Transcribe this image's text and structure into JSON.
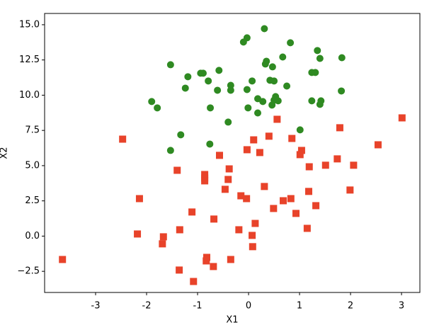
{
  "chart_data": {
    "type": "scatter",
    "xlabel": "X1",
    "ylabel": "X2",
    "xlim": [
      -4.0,
      3.36
    ],
    "ylim": [
      -4.0,
      15.8
    ],
    "xticks": [
      -3,
      -2,
      -1,
      0,
      1,
      2,
      3
    ],
    "yticks": [
      {
        "value": -2.5,
        "label": "−2.5"
      },
      {
        "value": 0,
        "label": "0.0"
      },
      {
        "value": 2.5,
        "label": "2.5"
      },
      {
        "value": 5,
        "label": "5.0"
      },
      {
        "value": 7.5,
        "label": "7.5"
      },
      {
        "value": 10,
        "label": "10.0"
      },
      {
        "value": 12.5,
        "label": "12.5"
      },
      {
        "value": 15,
        "label": "15.0"
      }
    ],
    "grid": false,
    "series": [
      {
        "marker": "circle",
        "color": "#2f8a22",
        "x": [
          0.31,
          -0.03,
          -0.1,
          0.82,
          1.35,
          0.67,
          1.4,
          1.83,
          0.35,
          0.33,
          0.47,
          -1.53,
          -0.58,
          -0.94,
          -0.89,
          -1.19,
          1.24,
          1.31,
          0.07,
          0.42,
          0.5,
          -0.79,
          -0.35,
          0.75,
          -1.24,
          -0.61,
          -0.35,
          -0.03,
          1.82,
          0.53,
          0.5,
          0.18,
          0.28,
          0.58,
          -1.9,
          1.24,
          1.42,
          1.4,
          0.46,
          -1.79,
          -0.75,
          -0.01,
          0.18,
          -0.4,
          1.01,
          -1.33,
          -0.76,
          -1.53
        ],
        "values": [
          14.72,
          14.07,
          13.77,
          13.72,
          13.17,
          12.71,
          12.61,
          12.66,
          12.41,
          12.21,
          12.01,
          12.16,
          11.76,
          11.56,
          11.56,
          11.31,
          11.61,
          11.61,
          11.01,
          11.06,
          11.01,
          11.01,
          10.7,
          10.65,
          10.5,
          10.35,
          10.35,
          10.4,
          10.3,
          9.9,
          9.65,
          9.75,
          9.55,
          9.6,
          9.55,
          9.6,
          9.6,
          9.35,
          9.3,
          9.1,
          9.1,
          9.1,
          8.74,
          8.09,
          7.54,
          7.19,
          6.53,
          6.08
        ]
      },
      {
        "marker": "square",
        "color": "#e8432a",
        "x": [
          -3.65,
          -2.47,
          3.01,
          0.56,
          1.79,
          0.4,
          0.85,
          0.1,
          2.54,
          -0.03,
          1.04,
          0.22,
          1.01,
          -0.57,
          1.74,
          1.51,
          2.06,
          1.19,
          -0.38,
          -1.4,
          -0.86,
          -0.86,
          -0.4,
          -0.86,
          0.31,
          -0.46,
          1.99,
          1.18,
          -0.15,
          -0.04,
          -2.14,
          0.83,
          0.68,
          1.32,
          0.49,
          -1.11,
          0.93,
          -0.68,
          0.13,
          1.15,
          -1.35,
          -0.19,
          -2.18,
          0.07,
          -1.67,
          -1.69,
          0.08,
          -0.82,
          -0.83,
          -0.35,
          -0.69,
          -1.36,
          -1.08
        ],
        "values": [
          -1.66,
          6.88,
          8.39,
          8.29,
          7.69,
          7.09,
          6.93,
          6.83,
          6.48,
          6.13,
          6.08,
          5.93,
          5.78,
          5.73,
          5.48,
          5.03,
          5.03,
          4.92,
          4.77,
          4.67,
          4.37,
          4.12,
          4.02,
          3.92,
          3.52,
          3.32,
          3.27,
          3.17,
          2.86,
          2.66,
          2.66,
          2.66,
          2.51,
          2.16,
          1.96,
          1.71,
          1.61,
          1.21,
          0.9,
          0.55,
          0.45,
          0.45,
          0.15,
          0.05,
          -0.05,
          -0.55,
          -0.75,
          -1.51,
          -1.76,
          -1.66,
          -2.16,
          -2.41,
          -3.22
        ]
      }
    ]
  }
}
